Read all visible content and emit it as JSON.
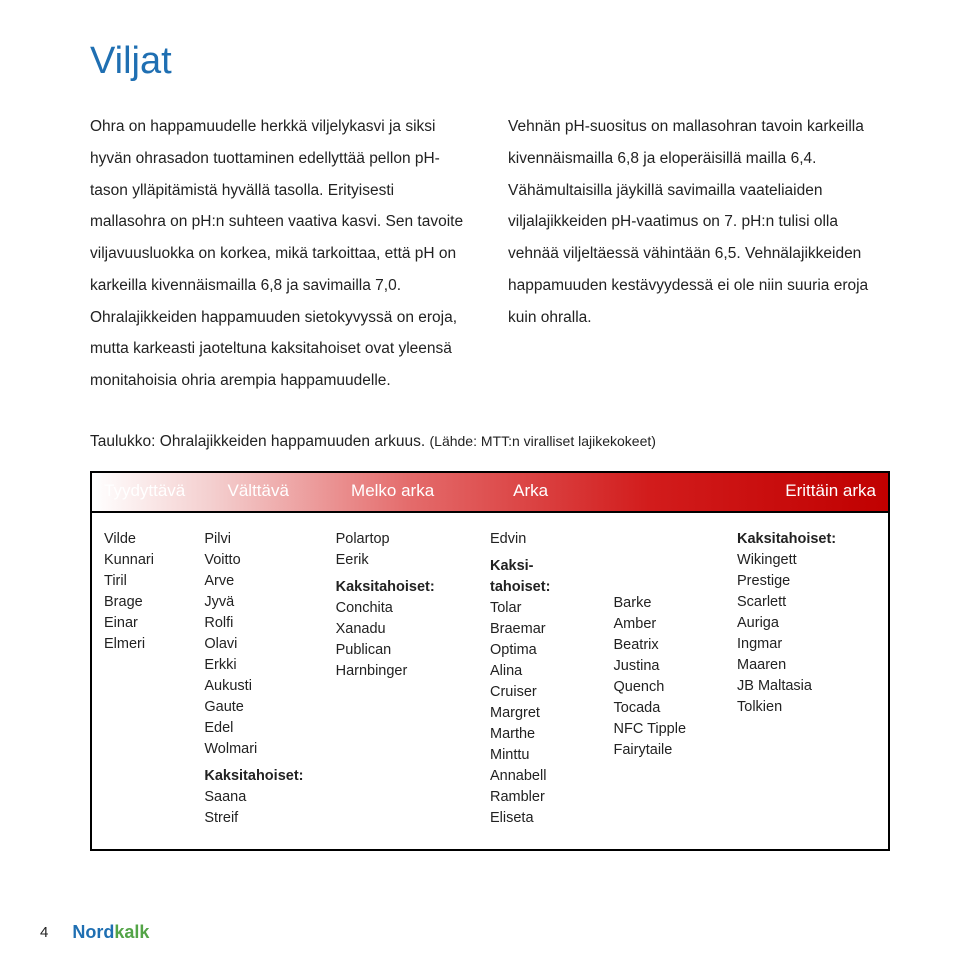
{
  "title": {
    "text": "Viljat",
    "color": "#1f6fb2",
    "fontsize": 38
  },
  "paragraphs": {
    "left": "Ohra on happamuudelle herkkä viljelykasvi ja siksi hyvän ohrasadon tuottaminen edellyttää pellon pH-tason ylläpitämistä hyvällä tasolla. Erityisesti mallasohra on pH:n suhteen vaativa kasvi. Sen tavoite viljavuusluokka on korkea, mikä tarkoittaa, että pH on karkeilla kivennäismailla 6,8 ja savimailla 7,0. Ohralajikkeiden happamuuden sietokyvyssä on eroja, mutta karkeasti jaoteltuna kaksitahoiset ovat yleensä monitahoisia ohria arempia happamuudelle.",
    "right": "Vehnän pH-suositus on mallasohran tavoin karkeilla kivennäismailla 6,8 ja eloperäisillä mailla 6,4. Vähämultaisilla jäykillä savimailla vaateliaiden viljalajikkeiden pH-vaatimus on 7. pH:n tulisi olla vehnää viljeltäessä vähintään 6,5. Vehnälajikkeiden happamuuden kestävyydessä ei ole niin suuria eroja kuin ohralla."
  },
  "table_caption": {
    "text": "Taulukko: Ohralajikkeiden happamuuden arkuus. ",
    "source": "(Lähde: MTT:n viralliset lajikekokeet)"
  },
  "gradient_header": {
    "labels": [
      "Tyydyttävä",
      "Välttävä",
      "Melko arka",
      "Arka",
      "Erittäin arka"
    ],
    "gradient_stops": [
      "#ffffff",
      "#f4cfcf",
      "#e46b6b",
      "#d21c1c",
      "#c00000"
    ],
    "text_color": "#ffffff",
    "fontsize": 17
  },
  "columns": {
    "c1": [
      "Vilde",
      "Kunnari",
      "Tiril",
      "Brage",
      "Einar",
      "Elmeri"
    ],
    "c2": {
      "main": [
        "Pilvi",
        "Voitto",
        "Arve",
        "Jyvä",
        "Rolfi",
        "Olavi",
        "Erkki",
        "Aukusti",
        "Gaute",
        "Edel",
        "Wolmari"
      ],
      "section_label": "Kaksitahoiset:",
      "section": [
        "Saana",
        "Streif"
      ]
    },
    "c3": {
      "main": [
        "Polartop",
        "Eerik"
      ],
      "section_label": "Kaksitahoiset:",
      "section": [
        "Conchita",
        "Xanadu",
        "Publican",
        "Harnbinger"
      ]
    },
    "c4": {
      "main": [
        "Edvin"
      ],
      "section_label": "Kaksi-\ntahoiset:",
      "section": [
        "Tolar",
        "Braemar",
        "Optima",
        "Alina",
        "Cruiser",
        "Margret",
        "Marthe",
        "Minttu",
        "Annabell",
        "Rambler",
        "Eliseta"
      ]
    },
    "c5": [
      "Barke",
      "Amber",
      "Beatrix",
      "Justina",
      "Quench",
      "Tocada",
      "NFC Tipple",
      "Fairytaile"
    ],
    "c6": {
      "section_label": "Kaksitahoiset:",
      "section": [
        "Wikingett",
        "Prestige",
        "Scarlett",
        "Auriga",
        "Ingmar",
        "Maaren",
        "JB Maltasia",
        "Tolkien"
      ]
    }
  },
  "footer": {
    "page_number": "4",
    "brand": "Nordkalk",
    "brand_colors": {
      "left": "#1f6fb2",
      "right": "#53a447"
    }
  }
}
